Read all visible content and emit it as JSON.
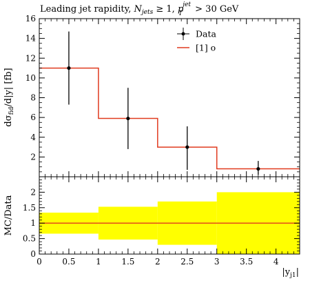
{
  "title": "Leading jet rapidity, N_jets ≥ 1, p_T^jet > 30 GeV",
  "title_parts": {
    "prefix": "Leading jet rapidity, ",
    "n": "N",
    "n_sub": "jets",
    "ge": " ≥ 1, ",
    "p": "p",
    "p_sup": "jet",
    "p_sub": "T",
    "suffix": " > 30 GeV"
  },
  "colors": {
    "data": "#000000",
    "mc": "#e03a1e",
    "band": "#ffff00",
    "frame": "#000000"
  },
  "chart_data": [
    {
      "panel": "main",
      "type": "line",
      "ylabel": "dσ_fid/d|y| [fb]",
      "xlim": [
        0,
        4.4
      ],
      "ylim": [
        0,
        16
      ],
      "yticks": [
        2,
        4,
        6,
        8,
        10,
        12,
        14,
        16
      ],
      "grid": false,
      "legend_position": "top-right",
      "series": [
        {
          "name": "Data",
          "style": "points-with-errors",
          "x": [
            0.5,
            1.5,
            2.5,
            3.7
          ],
          "y": [
            11.0,
            5.9,
            3.0,
            0.8
          ],
          "yerr_low": [
            3.7,
            3.1,
            2.3,
            0.6
          ],
          "yerr_high": [
            3.7,
            3.1,
            2.1,
            0.8
          ]
        },
        {
          "name": "[1] o",
          "style": "step",
          "bin_edges": [
            0,
            1,
            2,
            3,
            4.4
          ],
          "values": [
            11.0,
            5.9,
            3.0,
            0.8
          ]
        }
      ]
    },
    {
      "panel": "ratio",
      "type": "area",
      "ylabel": "MC/Data",
      "xlabel": "|y_j1|",
      "xlim": [
        0,
        4.4
      ],
      "ylim": [
        0,
        2.5
      ],
      "xticks": [
        0,
        0.5,
        1,
        1.5,
        2,
        2.5,
        3,
        3.5,
        4
      ],
      "yticks": [
        0,
        0.5,
        1,
        1.5,
        2
      ],
      "grid": false,
      "band": {
        "bin_edges": [
          0,
          1,
          2,
          3,
          4.4
        ],
        "low": [
          0.66,
          0.47,
          0.3,
          0.0
        ],
        "high": [
          1.34,
          1.53,
          1.7,
          2.0
        ]
      },
      "ratio_line": {
        "bin_edges": [
          0,
          1,
          2,
          3,
          4.4
        ],
        "values": [
          1.0,
          1.0,
          1.0,
          1.0
        ]
      }
    }
  ],
  "axis_text": {
    "ylabel_main_prefix": "dσ",
    "ylabel_main_sub": "fid",
    "ylabel_main_suffix": "/d|y| [fb]",
    "ylabel_ratio": "MC/Data",
    "xlabel_prefix": "|y",
    "xlabel_sub": "j1",
    "xlabel_suffix": "|"
  },
  "x_tick_labels": [
    "0",
    "0.5",
    "1",
    "1.5",
    "2",
    "2.5",
    "3",
    "3.5",
    "4"
  ],
  "main_y_tick_labels": [
    "2",
    "4",
    "6",
    "8",
    "10",
    "12",
    "14",
    "16"
  ],
  "ratio_y_tick_labels": [
    "0",
    "0.5",
    "1",
    "1.5",
    "2"
  ]
}
